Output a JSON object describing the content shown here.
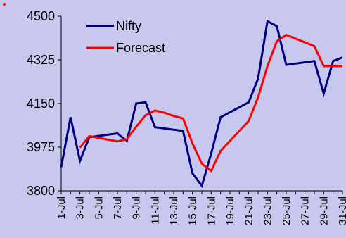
{
  "chart_data": {
    "type": "line",
    "title": "",
    "xlabel": "",
    "ylabel": "",
    "ylim": [
      3800,
      4500
    ],
    "yticks": [
      3800,
      3975,
      4150,
      4325,
      4500
    ],
    "ytick_labels": [
      "3800",
      "3975",
      "4150",
      "4325",
      "4500"
    ],
    "x": [
      "1-Jul",
      "2-Jul",
      "3-Jul",
      "4-Jul",
      "5-Jul",
      "6-Jul",
      "7-Jul",
      "8-Jul",
      "9-Jul",
      "10-Jul",
      "11-Jul",
      "12-Jul",
      "13-Jul",
      "14-Jul",
      "15-Jul",
      "16-Jul",
      "17-Jul",
      "18-Jul",
      "19-Jul",
      "20-Jul",
      "21-Jul",
      "22-Jul",
      "23-Jul",
      "24-Jul",
      "25-Jul",
      "26-Jul",
      "27-Jul",
      "28-Jul",
      "29-Jul",
      "30-Jul",
      "31-Jul"
    ],
    "xtick_labels": [
      "1-Jul",
      "3-Jul",
      "5-Jul",
      "7-Jul",
      "9-Jul",
      "11-Jul",
      "13-Jul",
      "15-Jul",
      "17-Jul",
      "19-Jul",
      "21-Jul",
      "23-Jul",
      "25-Jul",
      "27-Jul",
      "29-Jul",
      "31-Jul"
    ],
    "grid": false,
    "legend_position": "top-left",
    "series": [
      {
        "name": "Nifty",
        "color": "#000080",
        "values": [
          3895,
          4095,
          3920,
          4015,
          4020,
          4025,
          4030,
          4000,
          4150,
          4155,
          4055,
          4050,
          4045,
          4040,
          3870,
          3820,
          3950,
          4095,
          4115,
          4135,
          4155,
          4250,
          4480,
          4460,
          4305,
          4310,
          4315,
          4320,
          4190,
          4320,
          4335
        ]
      },
      {
        "name": "Forecast",
        "color": "#ff0000",
        "values": [
          null,
          null,
          3973,
          4019,
          4012,
          4005,
          3998,
          4007,
          4057,
          4103,
          4122,
          4113,
          4100,
          4090,
          3990,
          3909,
          3880,
          3960,
          4000,
          4040,
          4080,
          4175,
          4300,
          4400,
          4425,
          4410,
          4395,
          4380,
          4300,
          4300,
          4300
        ]
      }
    ]
  }
}
